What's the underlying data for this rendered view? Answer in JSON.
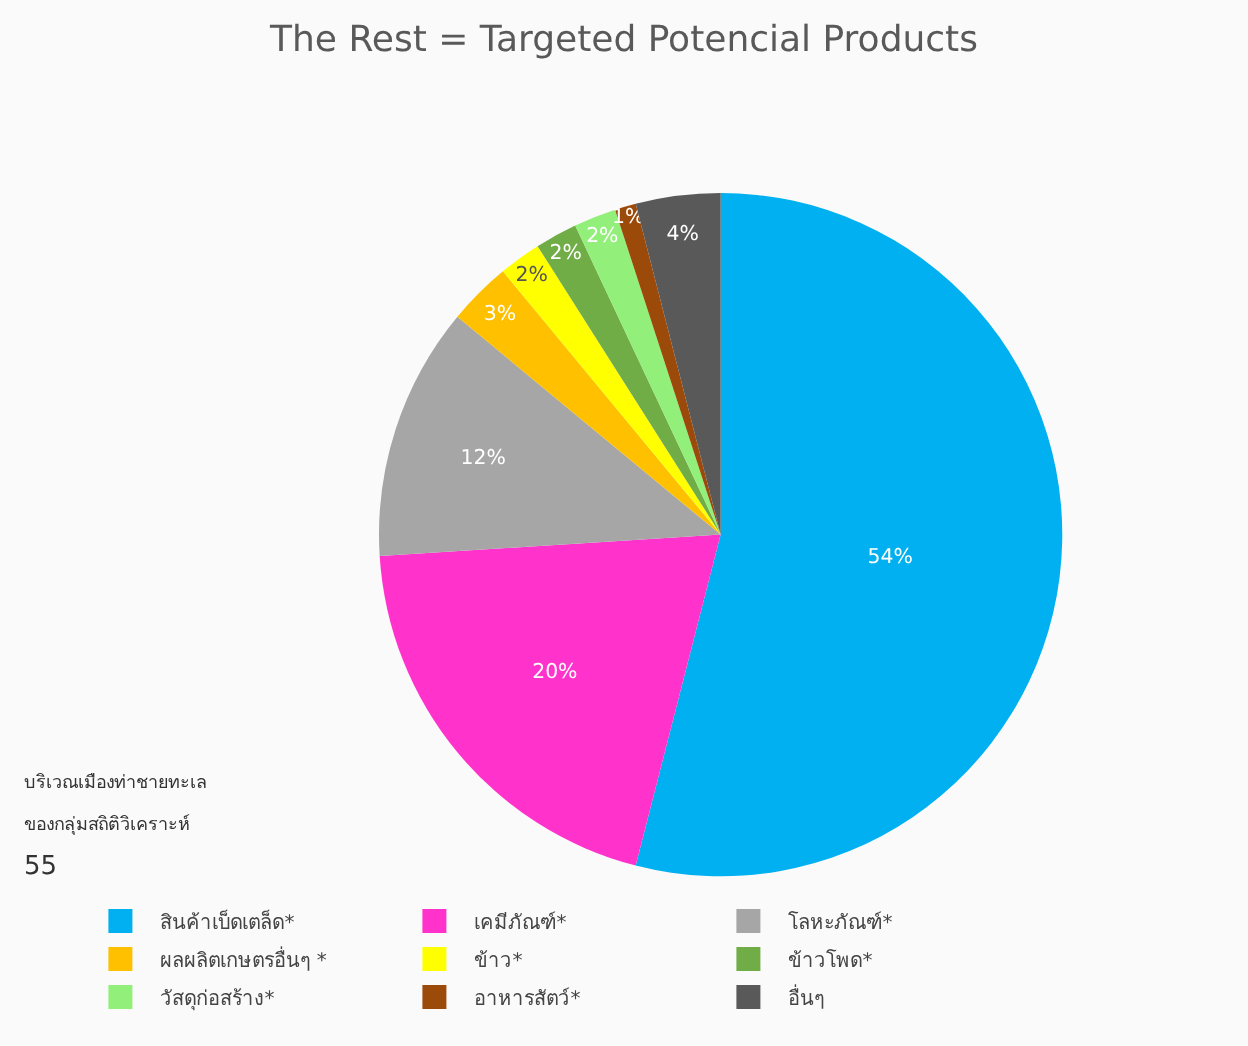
{
  "chart_data": {
    "type": "pie",
    "title": "The Rest = Targeted Potencial Products",
    "categories": [
      "สินค้าเบ็ดเตล็ด*",
      "เคมีภัณฑ์*",
      "โลหะภัณฑ์*",
      "ผลผลิตเกษตรอื่นๆ *",
      "ข้าว*",
      "ข้าวโพด*",
      "วัสดุก่อสร้าง*",
      "อาหารสัตว์*",
      "อื่นๆ"
    ],
    "values": [
      54,
      20,
      12,
      3,
      2,
      2,
      2,
      1,
      4
    ],
    "colors": [
      "#00b0f0",
      "#ff33cc",
      "#a6a6a6",
      "#ffc000",
      "#ffff00",
      "#70ad47",
      "#92f07a",
      "#9c4a0a",
      "#595959"
    ],
    "value_labels": [
      "54%",
      "20%",
      "12%",
      "3%",
      "2%",
      "2%",
      "2%",
      "1%",
      "4%"
    ],
    "legend": "bottom",
    "annotations": [
      "บริเวณเมืองท่าชายทะเล",
      "ของกลุ่มสถิติวิเคราะห์",
      "55"
    ]
  }
}
